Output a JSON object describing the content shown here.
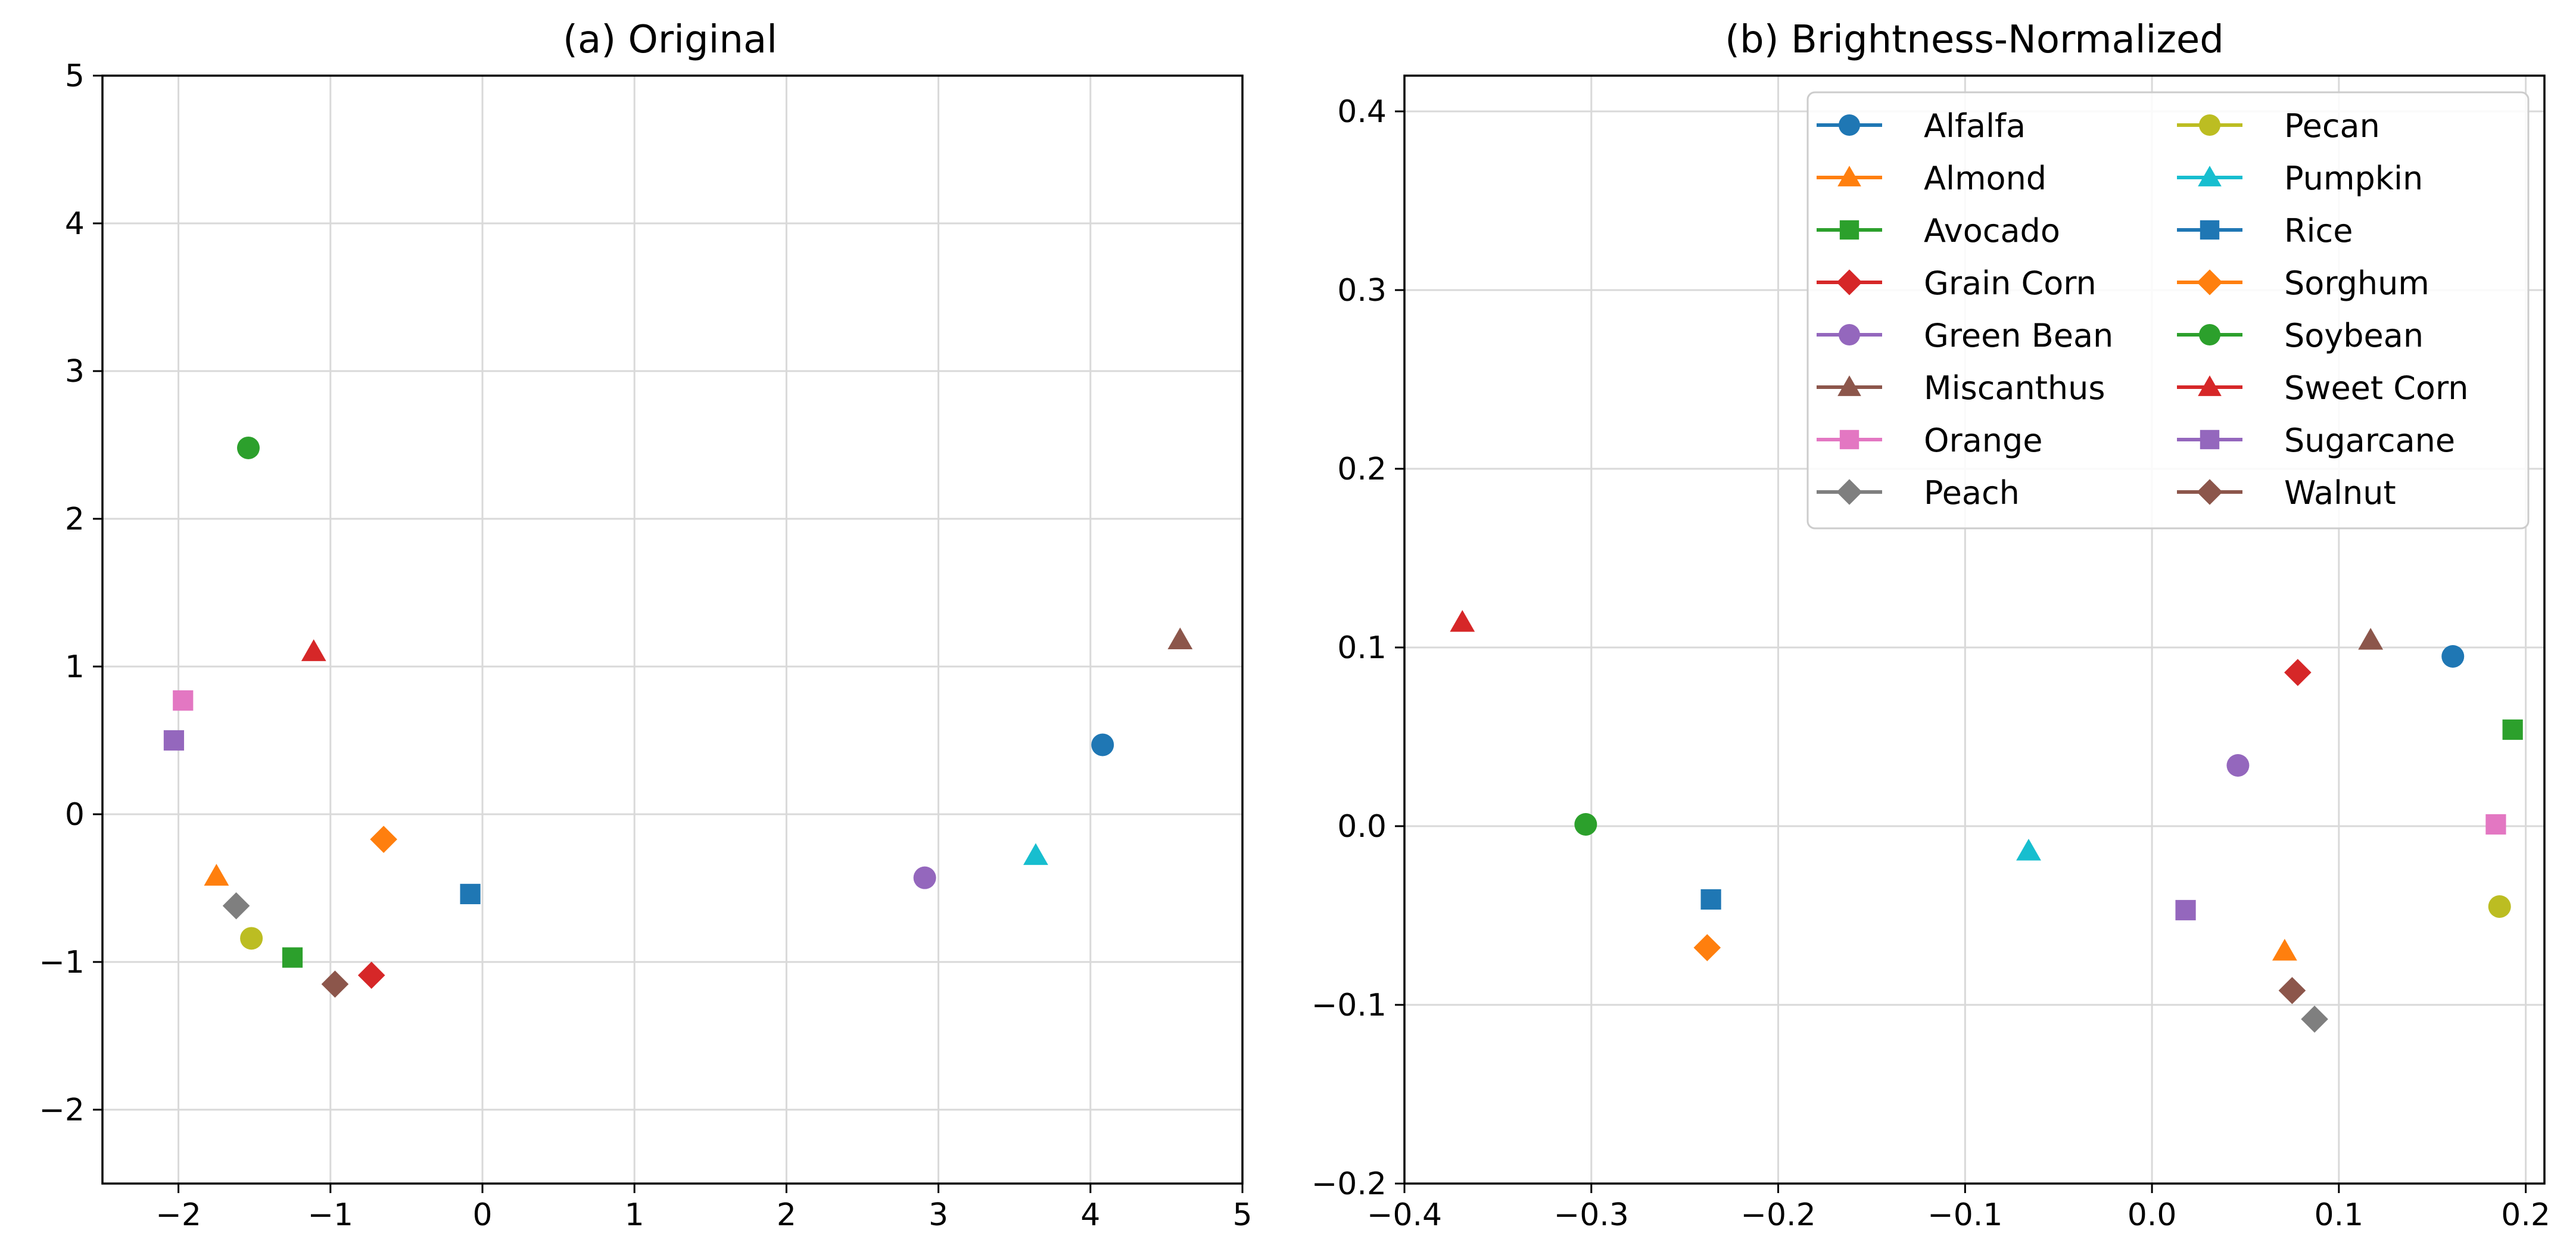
{
  "chart_data": [
    {
      "type": "scatter",
      "title": "(a) Original",
      "xlabel": "",
      "ylabel": "",
      "xlim": [
        -2.5,
        5
      ],
      "ylim": [
        -2.5,
        5
      ],
      "xticks": [
        -2,
        -1,
        0,
        1,
        2,
        3,
        4,
        5
      ],
      "yticks": [
        -2,
        -1,
        0,
        1,
        2,
        3,
        4,
        5
      ],
      "xtick_labels": [
        "−2",
        "−1",
        "0",
        "1",
        "2",
        "3",
        "4",
        "5"
      ],
      "ytick_labels": [
        "−2",
        "−1",
        "0",
        "1",
        "2",
        "3",
        "4",
        "5"
      ],
      "grid": true,
      "points": [
        {
          "label": "Alfalfa",
          "x": 4.08,
          "y": 0.47
        },
        {
          "label": "Almond",
          "x": -1.75,
          "y": -0.42
        },
        {
          "label": "Avocado",
          "x": -1.25,
          "y": -0.97
        },
        {
          "label": "Grain Corn",
          "x": -0.73,
          "y": -1.09
        },
        {
          "label": "Green Bean",
          "x": 2.91,
          "y": -0.43
        },
        {
          "label": "Miscanthus",
          "x": 4.59,
          "y": 1.18
        },
        {
          "label": "Orange",
          "x": -1.97,
          "y": 0.77
        },
        {
          "label": "Peach",
          "x": -1.62,
          "y": -0.62
        },
        {
          "label": "Pecan",
          "x": -1.52,
          "y": -0.84
        },
        {
          "label": "Pumpkin",
          "x": 3.64,
          "y": -0.28
        },
        {
          "label": "Rice",
          "x": -0.08,
          "y": -0.54
        },
        {
          "label": "Sorghum",
          "x": -0.65,
          "y": -0.17
        },
        {
          "label": "Soybean",
          "x": -1.54,
          "y": 2.48
        },
        {
          "label": "Sweet Corn",
          "x": -1.11,
          "y": 1.1
        },
        {
          "label": "Sugarcane",
          "x": -2.03,
          "y": 0.5
        },
        {
          "label": "Walnut",
          "x": -0.97,
          "y": -1.15
        }
      ]
    },
    {
      "type": "scatter",
      "title": "(b) Brightness-Normalized",
      "xlabel": "",
      "ylabel": "",
      "xlim": [
        -0.4,
        0.21
      ],
      "ylim": [
        -0.2,
        0.42
      ],
      "xticks": [
        -0.4,
        -0.3,
        -0.2,
        -0.1,
        0.0,
        0.1,
        0.2
      ],
      "yticks": [
        -0.2,
        -0.1,
        0.0,
        0.1,
        0.2,
        0.3,
        0.4
      ],
      "xtick_labels": [
        "−0.4",
        "−0.3",
        "−0.2",
        "−0.1",
        "0.0",
        "0.1",
        "0.2"
      ],
      "ytick_labels": [
        "−0.2",
        "−0.1",
        "0.0",
        "0.1",
        "0.2",
        "0.3",
        "0.4"
      ],
      "grid": true,
      "legend_position": "upper-right",
      "points": [
        {
          "label": "Alfalfa",
          "x": 0.161,
          "y": 0.095
        },
        {
          "label": "Almond",
          "x": 0.071,
          "y": -0.07
        },
        {
          "label": "Avocado",
          "x": 0.193,
          "y": 0.054
        },
        {
          "label": "Grain Corn",
          "x": 0.078,
          "y": 0.086
        },
        {
          "label": "Green Bean",
          "x": 0.046,
          "y": 0.034
        },
        {
          "label": "Miscanthus",
          "x": 0.117,
          "y": 0.104
        },
        {
          "label": "Orange",
          "x": 0.184,
          "y": 0.001
        },
        {
          "label": "Peach",
          "x": 0.087,
          "y": -0.108
        },
        {
          "label": "Pecan",
          "x": 0.186,
          "y": -0.045
        },
        {
          "label": "Pumpkin",
          "x": -0.066,
          "y": -0.014
        },
        {
          "label": "Rice",
          "x": -0.236,
          "y": -0.041
        },
        {
          "label": "Sorghum",
          "x": -0.238,
          "y": -0.068
        },
        {
          "label": "Soybean",
          "x": -0.303,
          "y": 0.001
        },
        {
          "label": "Sweet Corn",
          "x": -0.369,
          "y": 0.114
        },
        {
          "label": "Sugarcane",
          "x": 0.018,
          "y": -0.047
        },
        {
          "label": "Walnut",
          "x": 0.075,
          "y": -0.092
        }
      ]
    }
  ],
  "legend": {
    "entries": [
      {
        "label": "Alfalfa",
        "color": "#1f77b4",
        "marker": "circle"
      },
      {
        "label": "Almond",
        "color": "#ff7f0e",
        "marker": "triangle"
      },
      {
        "label": "Avocado",
        "color": "#2ca02c",
        "marker": "square"
      },
      {
        "label": "Grain Corn",
        "color": "#d62728",
        "marker": "diamond"
      },
      {
        "label": "Green Bean",
        "color": "#9467bd",
        "marker": "circle"
      },
      {
        "label": "Miscanthus",
        "color": "#8c564b",
        "marker": "triangle"
      },
      {
        "label": "Orange",
        "color": "#e377c2",
        "marker": "square"
      },
      {
        "label": "Peach",
        "color": "#7f7f7f",
        "marker": "diamond"
      },
      {
        "label": "Pecan",
        "color": "#bcbd22",
        "marker": "circle"
      },
      {
        "label": "Pumpkin",
        "color": "#17becf",
        "marker": "triangle"
      },
      {
        "label": "Rice",
        "color": "#1f77b4",
        "marker": "square"
      },
      {
        "label": "Sorghum",
        "color": "#ff7f0e",
        "marker": "diamond"
      },
      {
        "label": "Soybean",
        "color": "#2ca02c",
        "marker": "circle"
      },
      {
        "label": "Sweet Corn",
        "color": "#d62728",
        "marker": "triangle"
      },
      {
        "label": "Sugarcane",
        "color": "#9467bd",
        "marker": "square"
      },
      {
        "label": "Walnut",
        "color": "#8c564b",
        "marker": "diamond"
      }
    ]
  }
}
